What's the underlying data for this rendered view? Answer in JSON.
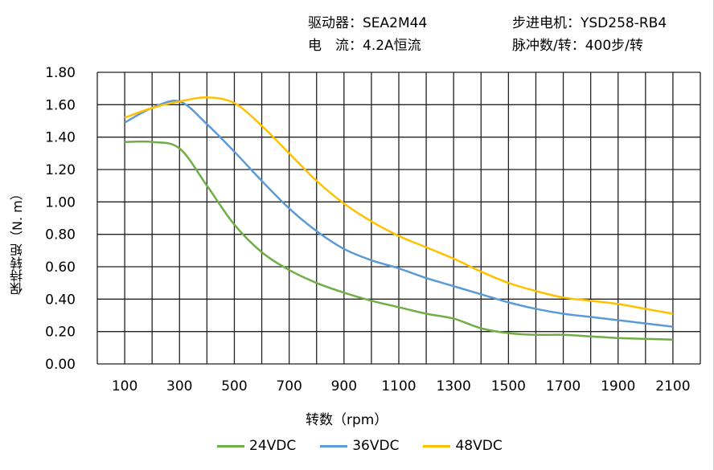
{
  "header": {
    "driver": "驱动器：SEA2M44",
    "current": "电　流：4.2A恒流",
    "motor": "步进电机：YSD258-RB4",
    "pulses": "脉冲数/转：400步/转"
  },
  "colors": {
    "24VDC": "#70AD47",
    "36VDC": "#5B9BD5",
    "48VDC": "#FFC000"
  },
  "chart_data": {
    "type": "line",
    "xlabel": "转数（rpm）",
    "ylabel": "保持转矩（N. m）",
    "xlim": [
      0,
      2200
    ],
    "ylim": [
      0,
      1.8
    ],
    "grid": true,
    "legend": "bottom",
    "x_ticks": [
      "100",
      "300",
      "500",
      "700",
      "900",
      "1100",
      "1300",
      "1500",
      "1700",
      "1900",
      "2100"
    ],
    "y_ticks": [
      "0.00",
      "0.20",
      "0.40",
      "0.60",
      "0.80",
      "1.00",
      "1.20",
      "1.40",
      "1.60",
      "1.80"
    ],
    "x": [
      100,
      200,
      300,
      400,
      500,
      600,
      700,
      800,
      900,
      1000,
      1100,
      1200,
      1300,
      1400,
      1500,
      1600,
      1700,
      1800,
      1900,
      2000,
      2100
    ],
    "series": [
      {
        "name": "24VDC",
        "values": [
          1.37,
          1.37,
          1.33,
          1.1,
          0.86,
          0.69,
          0.58,
          0.5,
          0.44,
          0.39,
          0.35,
          0.31,
          0.28,
          0.22,
          0.19,
          0.18,
          0.18,
          0.17,
          0.16,
          0.155,
          0.15
        ]
      },
      {
        "name": "36VDC",
        "values": [
          1.49,
          1.58,
          1.62,
          1.48,
          1.31,
          1.13,
          0.96,
          0.82,
          0.71,
          0.64,
          0.59,
          0.53,
          0.48,
          0.43,
          0.38,
          0.34,
          0.31,
          0.29,
          0.27,
          0.25,
          0.23
        ]
      },
      {
        "name": "48VDC",
        "values": [
          1.52,
          1.58,
          1.62,
          1.645,
          1.61,
          1.47,
          1.3,
          1.13,
          0.99,
          0.88,
          0.79,
          0.72,
          0.65,
          0.57,
          0.5,
          0.45,
          0.41,
          0.39,
          0.37,
          0.34,
          0.31
        ]
      }
    ]
  }
}
